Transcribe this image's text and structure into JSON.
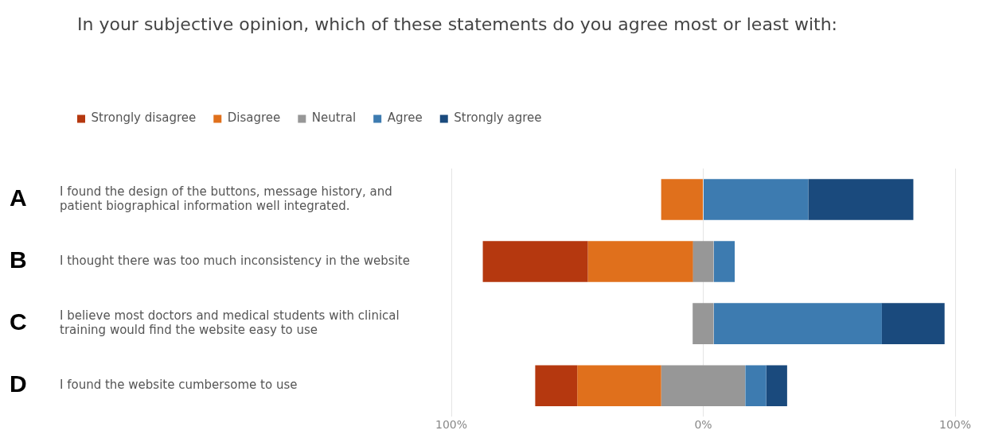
{
  "chart_data": {
    "type": "bar",
    "orientation": "horizontal",
    "title": "In your subjective opinion, which of these statements do you agree most or least with:",
    "categories": [
      "I found the design of the buttons, message history, and patient biographical information well integrated.",
      "I thought there was too much inconsistency in the website",
      "I believe most doctors and medical students with clinical training would find the website easy to use",
      "I found the website cumbersome to use"
    ],
    "series": [
      {
        "name": "Strongly disagree",
        "color": "#b5380f",
        "values": [
          null,
          41.7,
          null,
          16.7
        ],
        "base": [
          null,
          -87.5,
          null,
          -66.7
        ]
      },
      {
        "name": "Disagree",
        "color": "#e0701c",
        "values": [
          16.7,
          41.7,
          null,
          33.3
        ],
        "base": [
          -16.7,
          -45.8,
          null,
          -50
        ]
      },
      {
        "name": "Neutral",
        "color": "#979797",
        "values": [
          null,
          8.3,
          8.3,
          33.3
        ],
        "base": [
          null,
          -4.2,
          -4.2,
          -16.7
        ]
      },
      {
        "name": "Agree",
        "color": "#3d7bb0",
        "values": [
          41.7,
          8.3,
          66.7,
          8.3
        ],
        "base": [
          0,
          4.2,
          4.2,
          16.7
        ]
      },
      {
        "name": "Strongly agree",
        "color": "#1a4a7d",
        "values": [
          41.7,
          null,
          25,
          8.3
        ],
        "base": [
          41.7,
          null,
          70.8,
          25
        ]
      }
    ],
    "xlim": [
      -100,
      100
    ],
    "xticks": [
      {
        "value": -100,
        "label": "100%"
      },
      {
        "value": 0,
        "label": "0%"
      },
      {
        "value": 100,
        "label": "100%"
      }
    ],
    "grid": "x",
    "legend": "top left",
    "annotations": [
      "A",
      "B",
      "C",
      "D"
    ]
  }
}
